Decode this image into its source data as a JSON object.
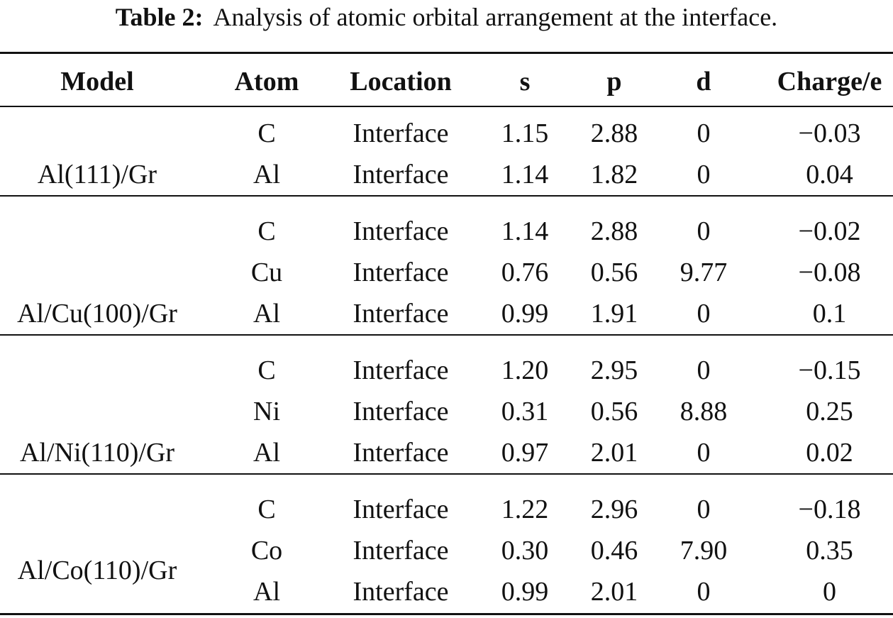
{
  "caption": {
    "label": "Table 2:",
    "text": "Analysis of atomic orbital arrangement at the interface."
  },
  "headers": {
    "model": "Model",
    "atom": "Atom",
    "location": "Location",
    "s": "s",
    "p": "p",
    "d": "d",
    "charge": "Charge/e"
  },
  "groups": [
    {
      "model": "Al(111)/Gr",
      "rows": [
        {
          "atom": "C",
          "location": "Interface",
          "s": "1.15",
          "p": "2.88",
          "d": "0",
          "charge": "−0.03"
        },
        {
          "atom": "Al",
          "location": "Interface",
          "s": "1.14",
          "p": "1.82",
          "d": "0",
          "charge": "0.04"
        }
      ]
    },
    {
      "model": "Al/Cu(100)/Gr",
      "rows": [
        {
          "atom": "C",
          "location": "Interface",
          "s": "1.14",
          "p": "2.88",
          "d": "0",
          "charge": "−0.02"
        },
        {
          "atom": "Cu",
          "location": "Interface",
          "s": "0.76",
          "p": "0.56",
          "d": "9.77",
          "charge": "−0.08"
        },
        {
          "atom": "Al",
          "location": "Interface",
          "s": "0.99",
          "p": "1.91",
          "d": "0",
          "charge": "0.1"
        }
      ]
    },
    {
      "model": "Al/Ni(110)/Gr",
      "rows": [
        {
          "atom": "C",
          "location": "Interface",
          "s": "1.20",
          "p": "2.95",
          "d": "0",
          "charge": "−0.15"
        },
        {
          "atom": "Ni",
          "location": "Interface",
          "s": "0.31",
          "p": "0.56",
          "d": "8.88",
          "charge": "0.25"
        },
        {
          "atom": "Al",
          "location": "Interface",
          "s": "0.97",
          "p": "2.01",
          "d": "0",
          "charge": "0.02"
        }
      ]
    },
    {
      "model": "Al/Co(110)/Gr",
      "rows": [
        {
          "atom": "C",
          "location": "Interface",
          "s": "1.22",
          "p": "2.96",
          "d": "0",
          "charge": "−0.18"
        },
        {
          "atom": "Co",
          "location": "Interface",
          "s": "0.30",
          "p": "0.46",
          "d": "7.90",
          "charge": "0.35"
        },
        {
          "atom": "Al",
          "location": "Interface",
          "s": "0.99",
          "p": "2.01",
          "d": "0",
          "charge": "0"
        }
      ]
    }
  ]
}
